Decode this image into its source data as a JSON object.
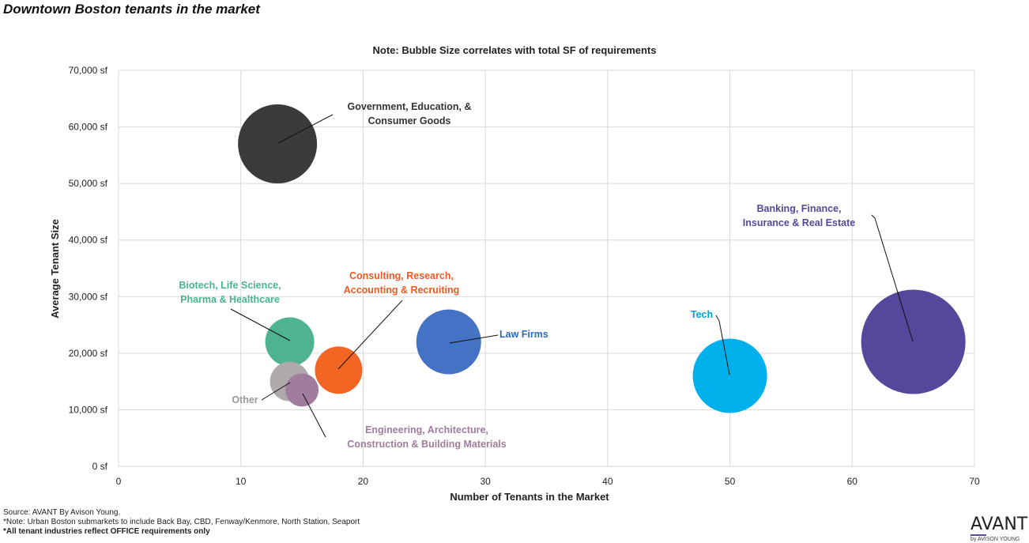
{
  "page": {
    "title": "Downtown Boston tenants in the market",
    "note": "Note: Bubble Size correlates with total SF of requirements"
  },
  "footer": {
    "source": "Source: AVANT By Avison Young.",
    "note": "*Note: Urban Boston submarkets to include Back Bay, CBD, Fenway/Kenmore, North Station, Seaport",
    "office": "*All tenant industries reflect OFFICE requirements only"
  },
  "brand": {
    "name": "AVANT",
    "sub": "by AVISON YOUNG"
  },
  "chart_data": {
    "type": "scatter",
    "xlabel": "Number of Tenants in the Market",
    "ylabel": "Average Tenant Size",
    "xlim": [
      0,
      70
    ],
    "ylim": [
      0,
      70000
    ],
    "x_ticks": [
      "0",
      "10",
      "20",
      "30",
      "40",
      "50",
      "60",
      "70"
    ],
    "y_ticks": [
      "0 sf",
      "10,000 sf",
      "20,000 sf",
      "30,000 sf",
      "40,000 sf",
      "50,000 sf",
      "60,000 sf",
      "70,000 sf"
    ],
    "grid": true,
    "series": [
      {
        "label": [
          "Government, Education, &",
          "Consumer Goods"
        ],
        "x": 13,
        "y": 57000,
        "size": 50,
        "color": "#3b3b3b",
        "label_color": "#333333"
      },
      {
        "label": [
          "Banking, Finance,",
          "Insurance & Real Estate"
        ],
        "x": 65,
        "y": 22000,
        "size": 66,
        "color": "#55489c",
        "label_color": "#55489c"
      },
      {
        "label": [
          "Tech"
        ],
        "x": 50,
        "y": 16000,
        "size": 47,
        "color": "#00b0eb",
        "label_color": "#00a0db"
      },
      {
        "label": [
          "Law Firms"
        ],
        "x": 27,
        "y": 22000,
        "size": 41,
        "color": "#4472c4",
        "label_color": "#2e6bb8"
      },
      {
        "label": [
          "Consulting, Research,",
          "Accounting & Recruiting"
        ],
        "x": 18,
        "y": 17000,
        "size": 30,
        "color": "#f26522",
        "label_color": "#ef5a24"
      },
      {
        "label": [
          "Biotech, Life Science,",
          "Pharma & Healthcare"
        ],
        "x": 14,
        "y": 22000,
        "size": 31,
        "color": "#4db391",
        "label_color": "#49b38f"
      },
      {
        "label": [
          "Engineering, Architecture,",
          "Construction & Building Materials"
        ],
        "x": 15,
        "y": 13500,
        "size": 21,
        "color": "#a07c9d",
        "label_color": "#a07c9d"
      },
      {
        "label": [
          "Other"
        ],
        "x": 14,
        "y": 15000,
        "size": 25,
        "color": "#aeaaaa",
        "label_color": "#999999"
      }
    ]
  }
}
